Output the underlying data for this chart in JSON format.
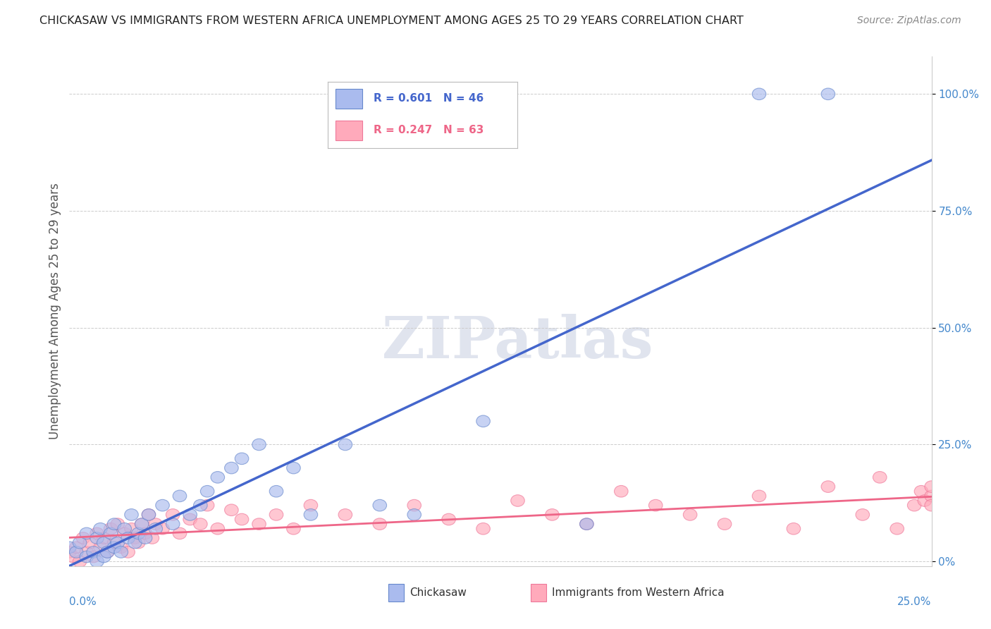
{
  "title": "CHICKASAW VS IMMIGRANTS FROM WESTERN AFRICA UNEMPLOYMENT AMONG AGES 25 TO 29 YEARS CORRELATION CHART",
  "source": "Source: ZipAtlas.com",
  "xlabel_bottom_left": "0.0%",
  "xlabel_bottom_right": "25.0%",
  "ylabel": "Unemployment Among Ages 25 to 29 years",
  "ytick_labels": [
    "0%",
    "25.0%",
    "50.0%",
    "75.0%",
    "100.0%"
  ],
  "ytick_values": [
    0.0,
    0.25,
    0.5,
    0.75,
    1.0
  ],
  "xlim": [
    0.0,
    0.25
  ],
  "ylim": [
    -0.01,
    1.08
  ],
  "legend1_R": "R = 0.601",
  "legend1_N": "N = 46",
  "legend2_R": "R = 0.247",
  "legend2_N": "N = 63",
  "blue_fill": "#AABBEE",
  "blue_edge": "#6688CC",
  "pink_fill": "#FFAABB",
  "pink_edge": "#EE7799",
  "blue_line": "#4466CC",
  "pink_line": "#EE6688",
  "watermark_color": "#E0E4EE",
  "chickasaw_x": [
    0.0,
    0.002,
    0.003,
    0.005,
    0.005,
    0.007,
    0.008,
    0.008,
    0.009,
    0.01,
    0.01,
    0.011,
    0.012,
    0.013,
    0.013,
    0.014,
    0.015,
    0.016,
    0.017,
    0.018,
    0.019,
    0.02,
    0.021,
    0.022,
    0.023,
    0.025,
    0.027,
    0.03,
    0.032,
    0.035,
    0.038,
    0.04,
    0.043,
    0.047,
    0.05,
    0.055,
    0.06,
    0.065,
    0.07,
    0.08,
    0.09,
    0.1,
    0.12,
    0.15,
    0.2,
    0.22
  ],
  "chickasaw_y": [
    0.03,
    0.02,
    0.04,
    0.01,
    0.06,
    0.02,
    0.0,
    0.05,
    0.07,
    0.01,
    0.04,
    0.02,
    0.06,
    0.03,
    0.08,
    0.04,
    0.02,
    0.07,
    0.05,
    0.1,
    0.04,
    0.06,
    0.08,
    0.05,
    0.1,
    0.07,
    0.12,
    0.08,
    0.14,
    0.1,
    0.12,
    0.15,
    0.18,
    0.2,
    0.22,
    0.25,
    0.15,
    0.2,
    0.1,
    0.25,
    0.12,
    0.1,
    0.3,
    0.08,
    1.0,
    1.0
  ],
  "immigrants_x": [
    0.0,
    0.001,
    0.002,
    0.003,
    0.004,
    0.005,
    0.006,
    0.007,
    0.008,
    0.009,
    0.01,
    0.011,
    0.012,
    0.013,
    0.014,
    0.015,
    0.016,
    0.017,
    0.018,
    0.019,
    0.02,
    0.021,
    0.022,
    0.023,
    0.024,
    0.025,
    0.027,
    0.03,
    0.032,
    0.035,
    0.038,
    0.04,
    0.043,
    0.047,
    0.05,
    0.055,
    0.06,
    0.065,
    0.07,
    0.08,
    0.09,
    0.1,
    0.11,
    0.12,
    0.13,
    0.14,
    0.15,
    0.16,
    0.17,
    0.18,
    0.19,
    0.2,
    0.21,
    0.22,
    0.23,
    0.235,
    0.24,
    0.245,
    0.247,
    0.248,
    0.25,
    0.25,
    0.25
  ],
  "immigrants_y": [
    0.02,
    0.01,
    0.03,
    0.0,
    0.05,
    0.02,
    0.04,
    0.01,
    0.06,
    0.03,
    0.05,
    0.02,
    0.07,
    0.04,
    0.08,
    0.03,
    0.06,
    0.02,
    0.07,
    0.05,
    0.04,
    0.08,
    0.06,
    0.1,
    0.05,
    0.08,
    0.07,
    0.1,
    0.06,
    0.09,
    0.08,
    0.12,
    0.07,
    0.11,
    0.09,
    0.08,
    0.1,
    0.07,
    0.12,
    0.1,
    0.08,
    0.12,
    0.09,
    0.07,
    0.13,
    0.1,
    0.08,
    0.15,
    0.12,
    0.1,
    0.08,
    0.14,
    0.07,
    0.16,
    0.1,
    0.18,
    0.07,
    0.12,
    0.15,
    0.13,
    0.14,
    0.16,
    0.12
  ]
}
